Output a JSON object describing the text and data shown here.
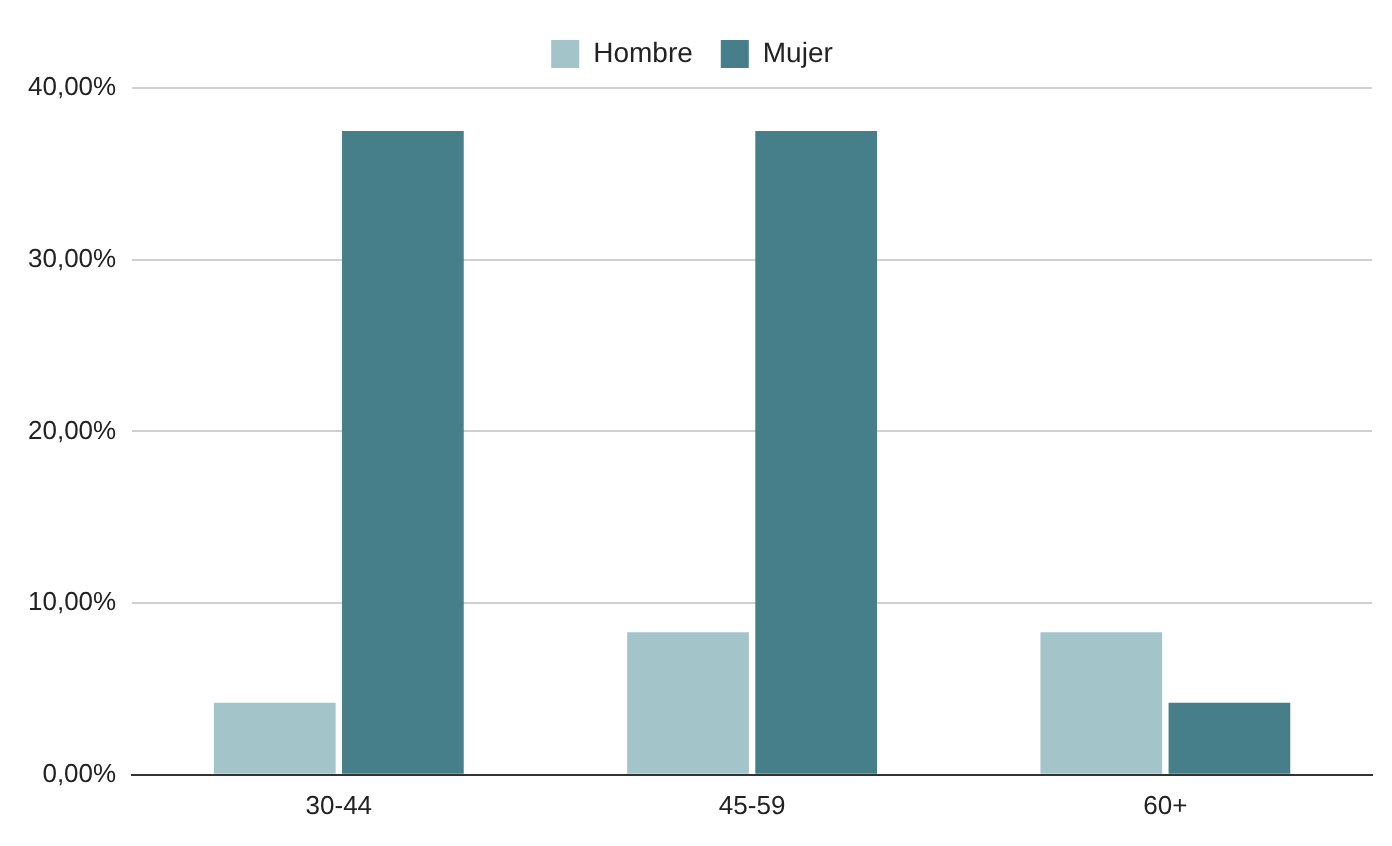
{
  "chart_data": {
    "type": "bar",
    "categories": [
      "30-44",
      "45-59",
      "60+"
    ],
    "series": [
      {
        "name": "Hombre",
        "color": "#a3c4c9",
        "values": [
          4.2,
          8.3,
          8.3
        ]
      },
      {
        "name": "Mujer",
        "color": "#467f8a",
        "values": [
          37.5,
          37.5,
          4.2
        ]
      }
    ],
    "ylim": [
      0,
      40
    ],
    "yticks": [
      {
        "value": 0,
        "label": "0,00%"
      },
      {
        "value": 10,
        "label": "10,00%"
      },
      {
        "value": 20,
        "label": "20,00%"
      },
      {
        "value": 30,
        "label": "30,00%"
      },
      {
        "value": 40,
        "label": "40,00%"
      }
    ],
    "grid": "y",
    "legend": "top"
  }
}
